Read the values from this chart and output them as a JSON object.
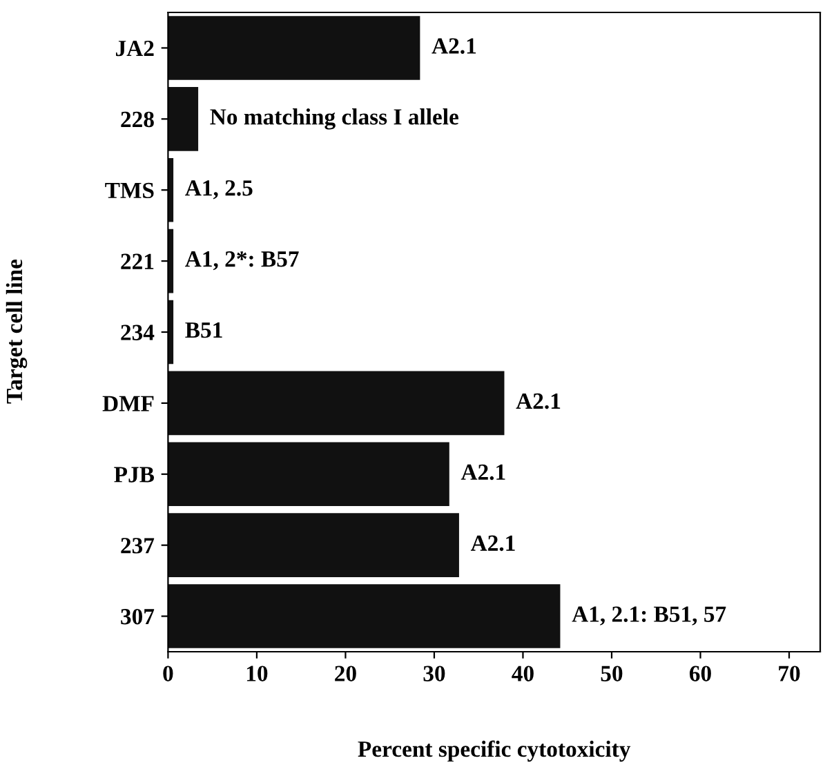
{
  "chart_data": {
    "type": "bar",
    "orientation": "horizontal",
    "xlabel": "Percent specific cytotoxicity",
    "ylabel": "Target cell line",
    "categories": [
      "JA2",
      "228",
      "TMS",
      "221",
      "234",
      "DMF",
      "PJB",
      "237",
      "307"
    ],
    "values": [
      28.4,
      3.4,
      0.6,
      0.6,
      0.6,
      37.9,
      31.7,
      32.8,
      44.2
    ],
    "color": "#111111",
    "xlim": [
      0,
      73.5
    ],
    "xticks": [
      0,
      10,
      20,
      30,
      40,
      50,
      60,
      70
    ],
    "grid": false,
    "annotations": [
      {
        "text": "A2.1",
        "x": 28.4,
        "y": "JA2"
      },
      {
        "text": "No matching class I allele",
        "x": 3.4,
        "y": "228"
      },
      {
        "text": "A1, 2.5",
        "x": 0.6,
        "y": "TMS"
      },
      {
        "text": "A1, 2*: B57",
        "x": 0.6,
        "y": "221"
      },
      {
        "text": "B51",
        "x": 0.6,
        "y": "234"
      },
      {
        "text": "A2.1",
        "x": 37.9,
        "y": "DMF"
      },
      {
        "text": "A2.1",
        "x": 31.7,
        "y": "PJB"
      },
      {
        "text": "A2.1",
        "x": 32.8,
        "y": "237"
      },
      {
        "text": "A1, 2.1: B51, 57",
        "x": 44.2,
        "y": "307"
      }
    ]
  }
}
